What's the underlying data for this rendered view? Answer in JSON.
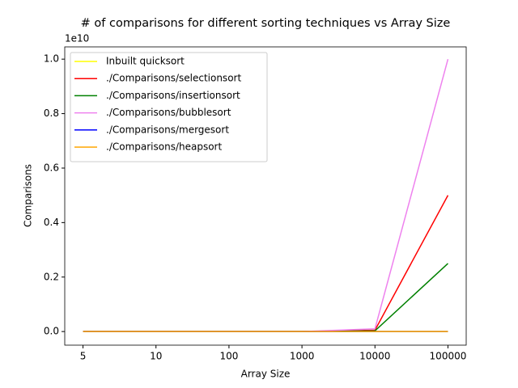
{
  "chart_data": {
    "type": "line",
    "title": "# of comparisons for different sorting techniques vs Array Size",
    "x_label": "Array Size",
    "y_label": "Comparisons",
    "y_offset_label": "1e10",
    "categories": [
      "5",
      "10",
      "100",
      "1000",
      "10000",
      "100000"
    ],
    "series": [
      {
        "name": "Inbuilt quicksort",
        "color": "yellow",
        "values": [
          0,
          0,
          0,
          0,
          0,
          0
        ]
      },
      {
        "name": "./Comparisons/selectionsort",
        "color": "red",
        "values": [
          0,
          0,
          0,
          5e-05,
          0.005,
          0.5
        ]
      },
      {
        "name": "./Comparisons/insertionsort",
        "color": "green",
        "values": [
          0,
          0,
          0,
          2.5e-05,
          0.0025,
          0.25
        ]
      },
      {
        "name": "./Comparisons/bubblesort",
        "color": "violet",
        "values": [
          0,
          0,
          0,
          0.0001,
          0.01,
          1.0
        ]
      },
      {
        "name": "./Comparisons/mergesort",
        "color": "blue",
        "values": [
          0,
          0,
          0,
          0,
          0,
          0
        ]
      },
      {
        "name": "./Comparisons/heapsort",
        "color": "orange",
        "values": [
          0,
          0,
          0,
          0,
          0,
          0
        ]
      }
    ],
    "ylim": [
      -0.05,
      1.045
    ],
    "yticks": [
      {
        "value": 0,
        "label": "0.0"
      },
      {
        "value": 0.2,
        "label": "0.2"
      },
      {
        "value": 0.4,
        "label": "0.4"
      },
      {
        "value": 0.6,
        "label": "0.6"
      },
      {
        "value": 0.8,
        "label": "0.8"
      },
      {
        "value": 1.0,
        "label": "1.0"
      }
    ],
    "legend": "upper left",
    "grid": false
  }
}
